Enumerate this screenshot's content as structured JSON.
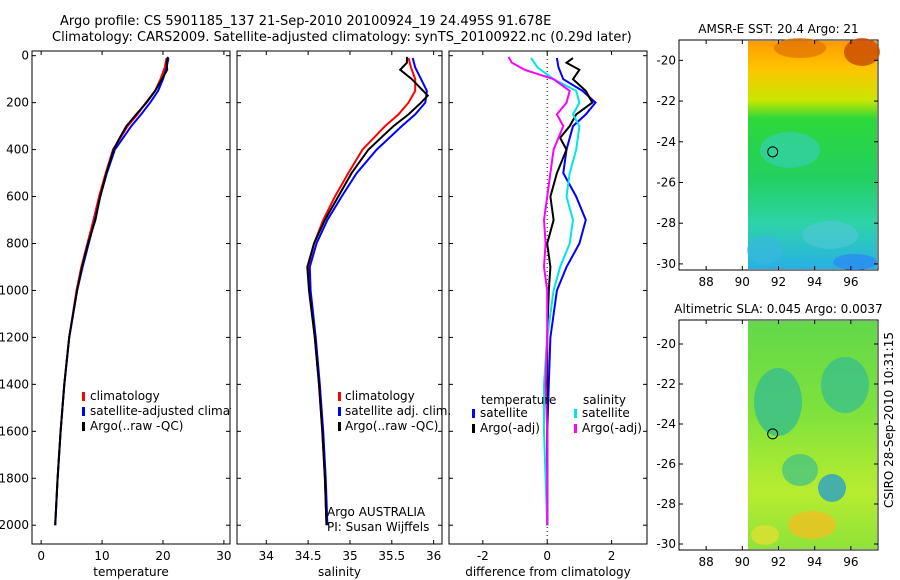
{
  "header": {
    "title_line1": "Argo profile: CS 5901185_137 21-Sep-2010 20100924_19 24.495S 91.678E",
    "title_line2": "Climatology: CARS2009. Satellite-adjusted climatology: synTS_20100922.nc (0.29d later)"
  },
  "colors": {
    "climatology": "#ff0000",
    "satellite": "#0000ff",
    "argo": "#000000",
    "salinity_satellite": "#00e5e5",
    "salinity_argo": "#ff00ff"
  },
  "chart_data": [
    {
      "type": "line",
      "id": "temperature",
      "xlabel": "temperature",
      "ylabel": "",
      "xlim": [
        -1.5,
        31
      ],
      "ylim": [
        2080,
        -20
      ],
      "xticks": [
        "0",
        "10",
        "20",
        "30"
      ],
      "yticks": [
        "0",
        "200",
        "400",
        "600",
        "800",
        "1000",
        "1200",
        "1400",
        "1600",
        "1800",
        "2000"
      ],
      "legend": [
        "climatology",
        "satellite-adjusted climatology",
        "Argo(..raw -QC)"
      ],
      "series": [
        {
          "name": "climatology",
          "depth": [
            10,
            50,
            100,
            150,
            200,
            250,
            300,
            400,
            500,
            600,
            700,
            800,
            900,
            1000,
            1200,
            1400,
            1600,
            1800,
            2000
          ],
          "values": [
            20.6,
            20.3,
            19.6,
            18.7,
            17.2,
            15.8,
            14.2,
            11.8,
            10.6,
            9.5,
            8.6,
            7.6,
            6.6,
            5.8,
            4.6,
            3.8,
            3.2,
            2.7,
            2.3
          ]
        },
        {
          "name": "satellite-adjusted climatology",
          "depth": [
            10,
            50,
            100,
            150,
            200,
            250,
            300,
            400,
            500,
            600,
            700,
            800,
            900,
            1000,
            1200,
            1400,
            1600,
            1800,
            2000
          ],
          "values": [
            20.9,
            20.6,
            20.0,
            19.2,
            17.9,
            16.4,
            14.8,
            12.1,
            10.8,
            9.7,
            8.8,
            7.8,
            6.8,
            5.9,
            4.6,
            3.8,
            3.2,
            2.7,
            2.3
          ]
        },
        {
          "name": "Argo(..raw -QC)",
          "depth": [
            5,
            30,
            60,
            100,
            150,
            200,
            250,
            300,
            350,
            400,
            450,
            500,
            600,
            700,
            800,
            900,
            1000,
            1200,
            1400,
            1600,
            1800,
            2000
          ],
          "values": [
            20.8,
            20.6,
            20.7,
            19.8,
            18.7,
            17.3,
            15.6,
            14.0,
            12.9,
            11.9,
            11.3,
            10.7,
            9.7,
            8.9,
            7.7,
            6.7,
            5.9,
            4.6,
            3.8,
            3.2,
            2.7,
            2.3
          ]
        }
      ]
    },
    {
      "type": "line",
      "id": "salinity",
      "xlabel": "salinity",
      "ylabel": "",
      "xlim": [
        33.65,
        36.1
      ],
      "ylim": [
        2080,
        -20
      ],
      "xticks": [
        "34",
        "34.5",
        "35",
        "35.5",
        "36"
      ],
      "legend": [
        "climatology",
        "satellite adj. clim.",
        "Argo(..raw -QC)"
      ],
      "annotation": [
        "Argo AUSTRALIA",
        "PI: Susan Wijffels"
      ],
      "series": [
        {
          "name": "climatology",
          "depth": [
            10,
            50,
            100,
            150,
            200,
            250,
            300,
            400,
            500,
            600,
            700,
            800,
            900,
            1000,
            1200,
            1400,
            1600,
            1800,
            2000
          ],
          "values": [
            35.7,
            35.73,
            35.78,
            35.78,
            35.7,
            35.58,
            35.42,
            35.15,
            34.98,
            34.82,
            34.68,
            34.57,
            34.5,
            34.52,
            34.58,
            34.63,
            34.67,
            34.7,
            34.72
          ]
        },
        {
          "name": "satellite adj. clim.",
          "depth": [
            10,
            50,
            100,
            150,
            200,
            250,
            300,
            400,
            500,
            600,
            700,
            800,
            900,
            1000,
            1200,
            1400,
            1600,
            1800,
            2000
          ],
          "values": [
            35.75,
            35.78,
            35.85,
            35.92,
            35.9,
            35.78,
            35.62,
            35.32,
            35.08,
            34.9,
            34.73,
            34.6,
            34.52,
            34.53,
            34.59,
            34.64,
            34.68,
            34.71,
            34.73
          ]
        },
        {
          "name": "Argo(..raw -QC)",
          "depth": [
            5,
            30,
            60,
            100,
            130,
            170,
            200,
            250,
            300,
            400,
            500,
            600,
            700,
            800,
            900,
            1000,
            1200,
            1400,
            1600,
            1800,
            2000
          ],
          "values": [
            35.68,
            35.68,
            35.6,
            35.74,
            35.82,
            35.93,
            35.85,
            35.7,
            35.52,
            35.22,
            35.02,
            34.86,
            34.7,
            34.57,
            34.49,
            34.51,
            34.58,
            34.63,
            34.67,
            34.7,
            34.72
          ]
        }
      ]
    },
    {
      "type": "line",
      "id": "difference",
      "xlabel": "difference from climatology",
      "ylabel": "",
      "xlim": [
        -3.05,
        3.1
      ],
      "ylim": [
        2080,
        -20
      ],
      "xticks": [
        "-2",
        "0",
        "2"
      ],
      "legend_temperature": [
        "temperature",
        "satellite",
        "Argo(-adj)"
      ],
      "legend_salinity": [
        "salinity",
        "satellite",
        "Argo(-adj)"
      ],
      "series": [
        {
          "name": "temperature satellite",
          "depth": [
            10,
            50,
            100,
            150,
            200,
            250,
            300,
            400,
            500,
            600,
            700,
            800,
            900,
            1000,
            1200,
            1400,
            1600,
            1800,
            2000
          ],
          "values": [
            0.3,
            0.35,
            0.5,
            1.1,
            1.5,
            1.2,
            0.8,
            0.6,
            0.5,
            0.9,
            1.2,
            1.0,
            0.6,
            0.3,
            0.1,
            0.05,
            0.0,
            0.0,
            0.0
          ]
        },
        {
          "name": "temperature Argo(-adj)",
          "depth": [
            10,
            30,
            60,
            100,
            150,
            200,
            250,
            300,
            350,
            400,
            500,
            600,
            700,
            800,
            900,
            1000,
            1200,
            1400,
            1600,
            1800,
            2000
          ],
          "values": [
            0.8,
            0.6,
            1.0,
            0.8,
            1.2,
            1.4,
            0.9,
            0.7,
            0.4,
            0.6,
            0.3,
            0.1,
            0.2,
            0.0,
            0.1,
            0.05,
            0.0,
            0.0,
            0.0,
            0.0,
            0.0
          ]
        },
        {
          "name": "salinity satellite",
          "depth": [
            10,
            50,
            100,
            150,
            200,
            250,
            300,
            400,
            500,
            600,
            700,
            800,
            900,
            1000,
            1200,
            1400,
            1600,
            1800,
            2000
          ],
          "values": [
            -0.5,
            -0.3,
            0.2,
            0.9,
            1.0,
            0.8,
            1.0,
            0.9,
            0.7,
            0.6,
            0.8,
            0.7,
            0.4,
            0.2,
            0.0,
            -0.1,
            -0.1,
            -0.05,
            0.0
          ]
        },
        {
          "name": "salinity Argo(-adj)",
          "depth": [
            5,
            30,
            60,
            100,
            150,
            200,
            250,
            300,
            400,
            500,
            600,
            700,
            800,
            900,
            1000,
            1200,
            1400,
            1600,
            1800,
            2000
          ],
          "values": [
            -1.2,
            -1.1,
            -0.7,
            0.2,
            0.7,
            0.6,
            0.3,
            0.5,
            0.2,
            0.1,
            0.0,
            -0.1,
            -0.05,
            -0.1,
            0.0,
            0.0,
            -0.05,
            0.0,
            0.0,
            0.0
          ]
        }
      ]
    },
    {
      "type": "heatmap",
      "id": "sst-map",
      "title": "AMSR-E SST: 20.4 Argo: 21",
      "xlim": [
        86.5,
        97.5
      ],
      "ylim": [
        -30.3,
        -19
      ],
      "xticks": [
        "88",
        "90",
        "92",
        "94",
        "96"
      ],
      "yticks": [
        "-20",
        "-22",
        "-24",
        "-26",
        "-28",
        "-30"
      ],
      "argo_position": [
        91.678,
        -24.495
      ]
    },
    {
      "type": "heatmap",
      "id": "sla-map",
      "title": "Altimetric SLA: 0.045 Argo: 0.0037",
      "xlim": [
        86.5,
        97.5
      ],
      "ylim": [
        -30.3,
        -18.8
      ],
      "xticks": [
        "88",
        "90",
        "92",
        "94",
        "96"
      ],
      "yticks": [
        "-20",
        "-22",
        "-24",
        "-26",
        "-28",
        "-30"
      ],
      "argo_position": [
        91.678,
        -24.495
      ]
    }
  ],
  "footer": {
    "credit": "CSIRO 28-Sep-2010 10:31:15"
  }
}
